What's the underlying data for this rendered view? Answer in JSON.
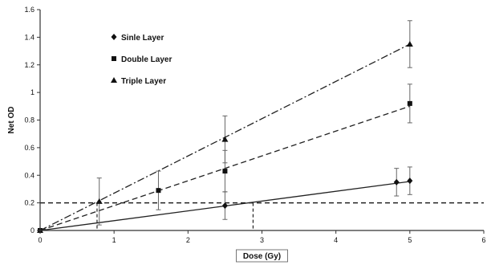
{
  "chart_data": {
    "type": "line",
    "xlabel": "Dose (Gy)",
    "ylabel": "Net OD",
    "xlim": [
      0,
      6
    ],
    "ylim": [
      0,
      1.6
    ],
    "xticks": [
      "0",
      "1",
      "2",
      "3",
      "4",
      "5",
      "6"
    ],
    "yticks": [
      "0",
      "0.2",
      "0.4",
      "0.6",
      "0.8",
      "1",
      "1.2",
      "1.4",
      "1.6"
    ],
    "grid": false,
    "legend_position": "top-left",
    "threshold": {
      "y": 0.2,
      "crossings_x": [
        0.77,
        2.88
      ]
    },
    "series": [
      {
        "name": "Sinle Layer",
        "marker": "diamond",
        "line_style": "solid",
        "x": [
          0,
          2.5,
          4.82,
          5
        ],
        "y": [
          0,
          0.18,
          0.35,
          0.36
        ],
        "err": [
          0,
          0.1,
          0.1,
          0.1
        ],
        "fit_slope": 0.071
      },
      {
        "name": "Double Layer",
        "marker": "square",
        "line_style": "dashed",
        "x": [
          0,
          1.6,
          2.5,
          5
        ],
        "y": [
          0,
          0.29,
          0.43,
          0.92
        ],
        "err": [
          0,
          0.14,
          0.15,
          0.14
        ],
        "fit_slope": 0.18
      },
      {
        "name": "Triple Layer",
        "marker": "triangle",
        "line_style": "dashdot",
        "x": [
          0,
          0.8,
          2.5,
          5
        ],
        "y": [
          0,
          0.21,
          0.66,
          1.35
        ],
        "err": [
          0,
          0.17,
          0.17,
          0.17
        ],
        "fit_slope": 0.27
      }
    ]
  }
}
